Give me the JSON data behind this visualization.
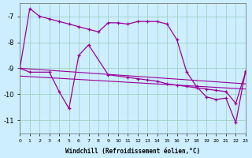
{
  "xlabel": "Windchill (Refroidissement éolien,°C)",
  "bg_color": "#cceeff",
  "grid_color": "#99ccbb",
  "line_color": "#990099",
  "xlim": [
    0,
    23
  ],
  "ylim": [
    -11.5,
    -6.5
  ],
  "xticks": [
    0,
    1,
    2,
    3,
    4,
    5,
    6,
    7,
    8,
    9,
    10,
    11,
    12,
    13,
    14,
    15,
    16,
    17,
    18,
    19,
    20,
    21,
    22,
    23
  ],
  "yticks": [
    -11,
    -10,
    -9,
    -8,
    -7
  ],
  "curve1_x": [
    0,
    1,
    2,
    3,
    4,
    5,
    6,
    7,
    8,
    9,
    10,
    11,
    12,
    13,
    14,
    15,
    16,
    17,
    18,
    19,
    20,
    21,
    22,
    23
  ],
  "curve1_y": [
    -9.0,
    -6.7,
    -7.0,
    -7.1,
    -7.2,
    -7.3,
    -7.4,
    -7.5,
    -7.6,
    -7.25,
    -7.25,
    -7.3,
    -7.2,
    -7.2,
    -7.2,
    -7.3,
    -7.9,
    -9.15,
    -9.7,
    -10.1,
    -10.2,
    -10.15,
    -11.1,
    -9.1
  ],
  "curve2_x": [
    0,
    1,
    3,
    4,
    5,
    6,
    7,
    9,
    11,
    12,
    13,
    14,
    15,
    16,
    17,
    18,
    19,
    20,
    21,
    22,
    23
  ],
  "curve2_y": [
    -9.0,
    -9.15,
    -9.15,
    -9.9,
    -10.55,
    -8.5,
    -8.1,
    -9.25,
    -9.35,
    -9.4,
    -9.45,
    -9.5,
    -9.6,
    -9.65,
    -9.7,
    -9.75,
    -9.8,
    -9.85,
    -9.9,
    -10.35,
    -9.15
  ],
  "trend1_x": [
    0,
    23
  ],
  "trend1_y": [
    -9.0,
    -9.6
  ],
  "trend2_x": [
    0,
    23
  ],
  "trend2_y": [
    -9.3,
    -9.8
  ]
}
